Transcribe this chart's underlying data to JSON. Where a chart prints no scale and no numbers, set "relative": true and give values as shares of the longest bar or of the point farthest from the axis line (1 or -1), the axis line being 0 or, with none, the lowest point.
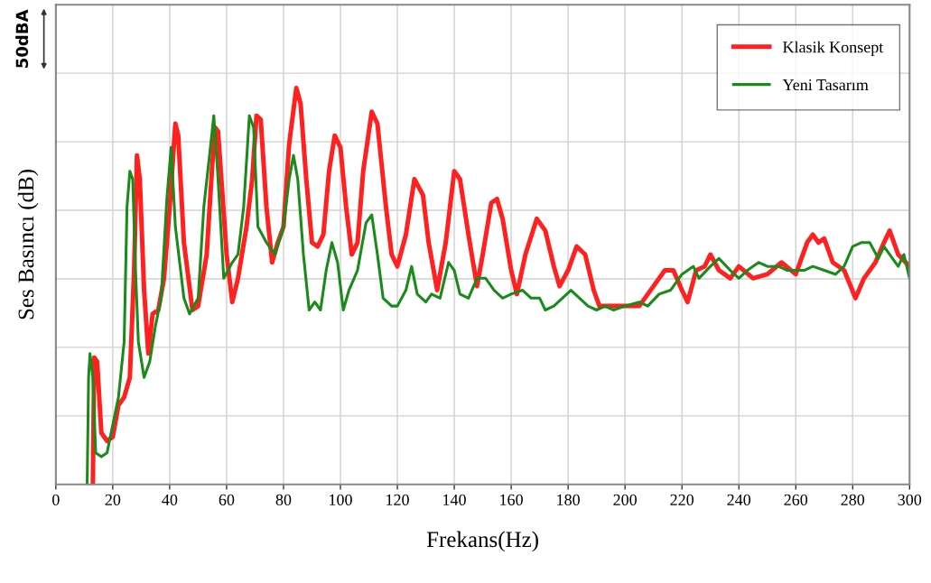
{
  "chart_data": {
    "type": "line",
    "relative": true,
    "xlabel": "Frekans(Hz)",
    "ylabel": "Ses Basıncı (dB)",
    "annotations": [
      "50dBA"
    ],
    "xlim": [
      0,
      300
    ],
    "xticks": [
      0,
      20,
      40,
      60,
      80,
      100,
      120,
      140,
      160,
      180,
      200,
      220,
      240,
      260,
      280,
      300
    ],
    "grid": true,
    "legend": "top right",
    "tick_labels": "x",
    "series": [
      {
        "name": "Klasik Konsept",
        "color": "#ff2020",
        "x": [
          13,
          13.5,
          14.5,
          16,
          18,
          20,
          22,
          24,
          26,
          27.5,
          28.5,
          29.5,
          31,
          32.5,
          34,
          36,
          38,
          40,
          42,
          43,
          45,
          48,
          50,
          53,
          55,
          56,
          57,
          60,
          62,
          64,
          67,
          69,
          70.5,
          72,
          74,
          76,
          78,
          80,
          82,
          84.5,
          86,
          88,
          90,
          92,
          94,
          96,
          98,
          100,
          102,
          104,
          106,
          108,
          111,
          113,
          116,
          118,
          120,
          123,
          126,
          129,
          131,
          134,
          137,
          140,
          142,
          145,
          148,
          150,
          153,
          155,
          157,
          160,
          162,
          165,
          169,
          172,
          175,
          177,
          180,
          183,
          186,
          189,
          191,
          195,
          200,
          205,
          210,
          214,
          217,
          220,
          222,
          225,
          228,
          230,
          233,
          237,
          240,
          245,
          250,
          255,
          260,
          264,
          266,
          268,
          270,
          273,
          277,
          281,
          284,
          288,
          291,
          293,
          296,
          300
        ],
        "values": [
          0,
          0.32,
          0.31,
          0.13,
          0.11,
          0.12,
          0.2,
          0.22,
          0.27,
          0.54,
          0.83,
          0.77,
          0.49,
          0.33,
          0.43,
          0.44,
          0.52,
          0.7,
          0.91,
          0.88,
          0.61,
          0.44,
          0.45,
          0.58,
          0.81,
          0.9,
          0.89,
          0.58,
          0.46,
          0.52,
          0.65,
          0.77,
          0.93,
          0.92,
          0.7,
          0.56,
          0.61,
          0.65,
          0.86,
          1.0,
          0.96,
          0.77,
          0.61,
          0.6,
          0.63,
          0.79,
          0.88,
          0.85,
          0.7,
          0.58,
          0.61,
          0.79,
          0.94,
          0.91,
          0.7,
          0.58,
          0.55,
          0.63,
          0.77,
          0.73,
          0.61,
          0.49,
          0.61,
          0.79,
          0.77,
          0.63,
          0.5,
          0.58,
          0.71,
          0.72,
          0.67,
          0.54,
          0.48,
          0.58,
          0.67,
          0.64,
          0.55,
          0.5,
          0.54,
          0.6,
          0.58,
          0.49,
          0.45,
          0.45,
          0.45,
          0.45,
          0.5,
          0.54,
          0.54,
          0.49,
          0.46,
          0.54,
          0.55,
          0.58,
          0.54,
          0.52,
          0.55,
          0.52,
          0.53,
          0.56,
          0.53,
          0.61,
          0.63,
          0.61,
          0.62,
          0.56,
          0.54,
          0.47,
          0.52,
          0.56,
          0.61,
          0.64,
          0.58,
          0.55
        ]
      },
      {
        "name": "Yeni Tasarım",
        "color": "#1a8a1a",
        "x": [
          11,
          11.5,
          12,
          13,
          14,
          16,
          18,
          20,
          22,
          24,
          25,
          26,
          27,
          28,
          29,
          31,
          33,
          35,
          37,
          39,
          40.5,
          42,
          45,
          47,
          50,
          52,
          54,
          55.5,
          57,
          59,
          62,
          64,
          66,
          68,
          69.5,
          71,
          74,
          77,
          80,
          82,
          83.5,
          85,
          87,
          89,
          91,
          93,
          95,
          97,
          99,
          101,
          103,
          106,
          109,
          111,
          113,
          115,
          118,
          120,
          123,
          125,
          127,
          130,
          132,
          135,
          138,
          140,
          142,
          145,
          148,
          151,
          154,
          157,
          160,
          164,
          167,
          170,
          172,
          175,
          178,
          181,
          184,
          187,
          190,
          193,
          196,
          200,
          205,
          208,
          212,
          216,
          220,
          224,
          226,
          230,
          233,
          237,
          240,
          243,
          247,
          250,
          254,
          257,
          260,
          263,
          266,
          270,
          274,
          277,
          280,
          283,
          286,
          289,
          291,
          294,
          296,
          298,
          300
        ],
        "values": [
          0,
          0.27,
          0.33,
          0.27,
          0.08,
          0.07,
          0.08,
          0.15,
          0.22,
          0.36,
          0.7,
          0.79,
          0.77,
          0.54,
          0.36,
          0.27,
          0.31,
          0.4,
          0.47,
          0.72,
          0.85,
          0.65,
          0.47,
          0.43,
          0.47,
          0.7,
          0.83,
          0.93,
          0.77,
          0.52,
          0.56,
          0.58,
          0.7,
          0.93,
          0.9,
          0.65,
          0.61,
          0.58,
          0.65,
          0.77,
          0.83,
          0.77,
          0.58,
          0.44,
          0.46,
          0.44,
          0.54,
          0.61,
          0.56,
          0.44,
          0.49,
          0.54,
          0.66,
          0.68,
          0.58,
          0.47,
          0.45,
          0.45,
          0.49,
          0.55,
          0.48,
          0.46,
          0.48,
          0.47,
          0.56,
          0.54,
          0.48,
          0.47,
          0.52,
          0.52,
          0.49,
          0.47,
          0.48,
          0.49,
          0.47,
          0.47,
          0.44,
          0.45,
          0.47,
          0.49,
          0.47,
          0.45,
          0.44,
          0.45,
          0.44,
          0.45,
          0.46,
          0.45,
          0.48,
          0.49,
          0.53,
          0.55,
          0.52,
          0.55,
          0.57,
          0.54,
          0.52,
          0.54,
          0.56,
          0.55,
          0.55,
          0.54,
          0.54,
          0.54,
          0.55,
          0.54,
          0.53,
          0.55,
          0.6,
          0.61,
          0.61,
          0.57,
          0.6,
          0.57,
          0.55,
          0.58,
          0.52
        ]
      }
    ]
  }
}
